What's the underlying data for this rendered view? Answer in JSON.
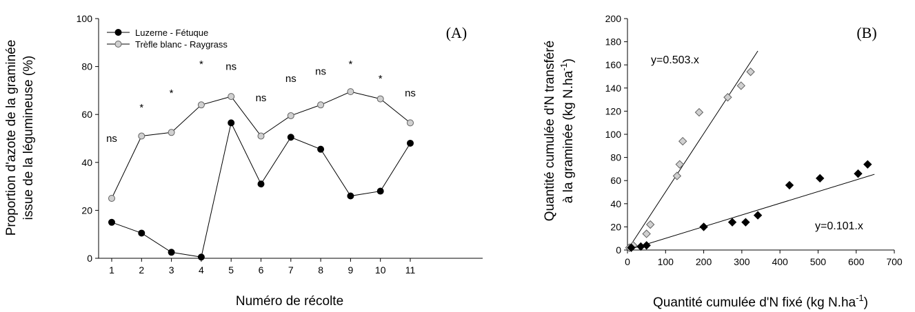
{
  "chart_data": [
    {
      "type": "line",
      "panel_label": "(A)",
      "xlabel": "Numéro de récolte",
      "ylabel_line1": "Proportion d'azote de la graminée",
      "ylabel_line2": "issue de la légumineuse (%)",
      "ylim": [
        0,
        100
      ],
      "yticks": [
        "0",
        "20",
        "40",
        "60",
        "80",
        "100"
      ],
      "categories": [
        "1",
        "2",
        "3",
        "4",
        "5",
        "6",
        "7",
        "8",
        "9",
        "10",
        "11"
      ],
      "series": [
        {
          "name": "Luzerne - Fétuque",
          "marker": "filled-circle",
          "color": "#000000",
          "values": [
            15,
            10.5,
            2.5,
            0.5,
            56.5,
            31,
            50.5,
            45.5,
            26,
            28,
            48
          ]
        },
        {
          "name": "Trèfle blanc - Raygrass",
          "marker": "open-circle",
          "color": "#c0c0c0",
          "values": [
            25,
            51,
            52.5,
            64,
            67.5,
            51,
            59.5,
            64,
            69.5,
            66.5,
            56.5
          ]
        }
      ],
      "significance": [
        "ns",
        "*",
        "*",
        "*",
        "ns",
        "ns",
        "ns",
        "ns",
        "*",
        "*",
        "ns"
      ],
      "significance_y": [
        50,
        63,
        69,
        81,
        80,
        67,
        75,
        78,
        81,
        75,
        69
      ],
      "legend_position": "top-left",
      "grid": false
    },
    {
      "type": "scatter",
      "panel_label": "(B)",
      "xlabel": "Quantité cumulée d'N fixé (kg N.ha",
      "xlabel_sup": "-1",
      "xlabel_end": ")",
      "ylabel_line1": "Quantité cumulée d'N transféré",
      "ylabel_line2": "à la graminée (kg N.ha",
      "ylabel_sup": "-1",
      "ylabel_end": ")",
      "xlim": [
        0,
        700
      ],
      "ylim": [
        0,
        200
      ],
      "xticks": [
        "0",
        "100",
        "200",
        "300",
        "400",
        "500",
        "600",
        "700"
      ],
      "yticks": [
        "0",
        "20",
        "40",
        "60",
        "80",
        "100",
        "120",
        "140",
        "160",
        "180",
        "200"
      ],
      "series": [
        {
          "name": "Trèfle blanc - Raygrass",
          "marker": "open-diamond",
          "color": "#c0c0c0",
          "x": [
            5,
            15,
            50,
            60,
            130,
            137,
            145,
            188,
            263,
            298,
            323
          ],
          "y": [
            2,
            4,
            14,
            22,
            64,
            74,
            94,
            119,
            132,
            142,
            154
          ],
          "fit": {
            "label": "y=0.503.x",
            "slope": 0.503,
            "x_end": 342
          }
        },
        {
          "name": "Luzerne - Fétuque",
          "marker": "filled-diamond",
          "color": "#000000",
          "x": [
            10,
            35,
            50,
            200,
            275,
            310,
            342,
            425,
            505,
            605,
            630
          ],
          "y": [
            2,
            3,
            4,
            20,
            24,
            24,
            30,
            56,
            62,
            66,
            74
          ],
          "fit": {
            "label": "y=0.101.x",
            "slope": 0.101,
            "x_end": 648
          }
        }
      ],
      "grid": false
    }
  ]
}
